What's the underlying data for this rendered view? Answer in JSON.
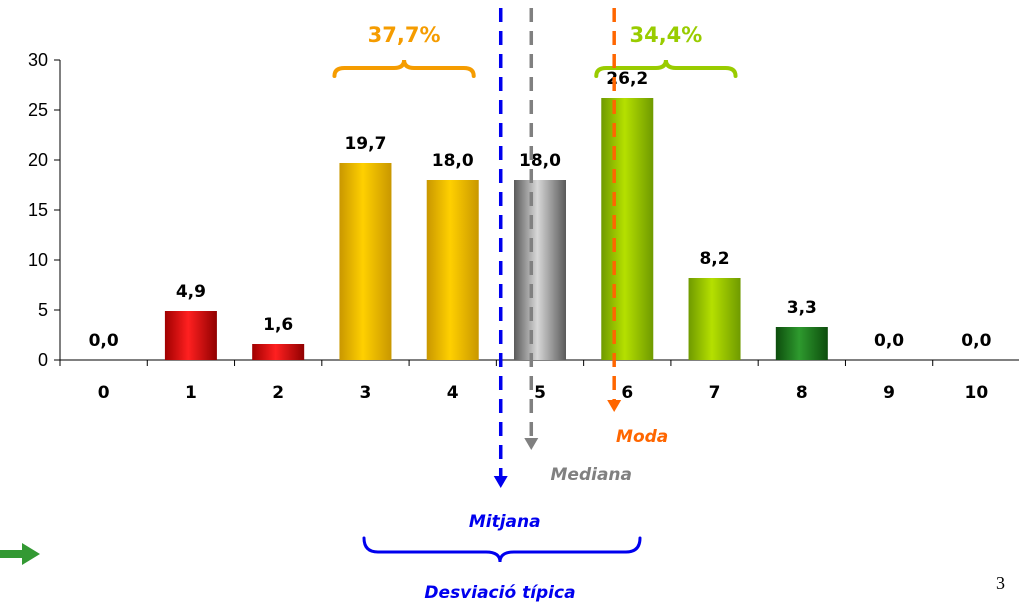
{
  "chart_data": {
    "type": "bar",
    "categories": [
      "0",
      "1",
      "2",
      "3",
      "4",
      "5",
      "6",
      "7",
      "8",
      "9",
      "10"
    ],
    "values": [
      0.0,
      4.9,
      1.6,
      19.7,
      18.0,
      18.0,
      26.2,
      8.2,
      3.3,
      0.0,
      0.0
    ],
    "data_labels": [
      "0,0",
      "4,9",
      "1,6",
      "19,7",
      "18,0",
      "18,0",
      "26,2",
      "8,2",
      "3,3",
      "0,0",
      "0,0"
    ],
    "bar_colors": [
      "#cc0000",
      "#cc0000",
      "#cc0000",
      "#f2b705",
      "#f2b705",
      "#8a8a8a",
      "#99cc00",
      "#99cc00",
      "#1f7a1f",
      "#99cc00",
      "#99cc00"
    ],
    "ylim": [
      0,
      30
    ],
    "yticks": [
      0,
      5,
      10,
      15,
      20,
      25,
      30
    ],
    "ytick_labels": [
      "0",
      "5",
      "10",
      "15",
      "20",
      "25",
      "30"
    ],
    "grid": false,
    "group_labels": [
      {
        "text": "37,7%",
        "color": "#f59c00",
        "from_category": "3",
        "to_category": "4"
      },
      {
        "text": "34,4%",
        "color": "#99cc00",
        "from_category": "6",
        "to_category": "7"
      }
    ],
    "reference_lines": [
      {
        "label": "Mitjana",
        "x": 4.55,
        "color": "#0000ee"
      },
      {
        "label": "Mediana",
        "x": 4.9,
        "color": "#808080"
      },
      {
        "label": "Moda",
        "x": 5.85,
        "color": "#ff6600"
      }
    ],
    "spread_label": {
      "text": "Desviació típica",
      "color": "#0000ee"
    }
  },
  "page_number": "3",
  "colors": {
    "axis": "#000000",
    "arrow": "#339933"
  }
}
